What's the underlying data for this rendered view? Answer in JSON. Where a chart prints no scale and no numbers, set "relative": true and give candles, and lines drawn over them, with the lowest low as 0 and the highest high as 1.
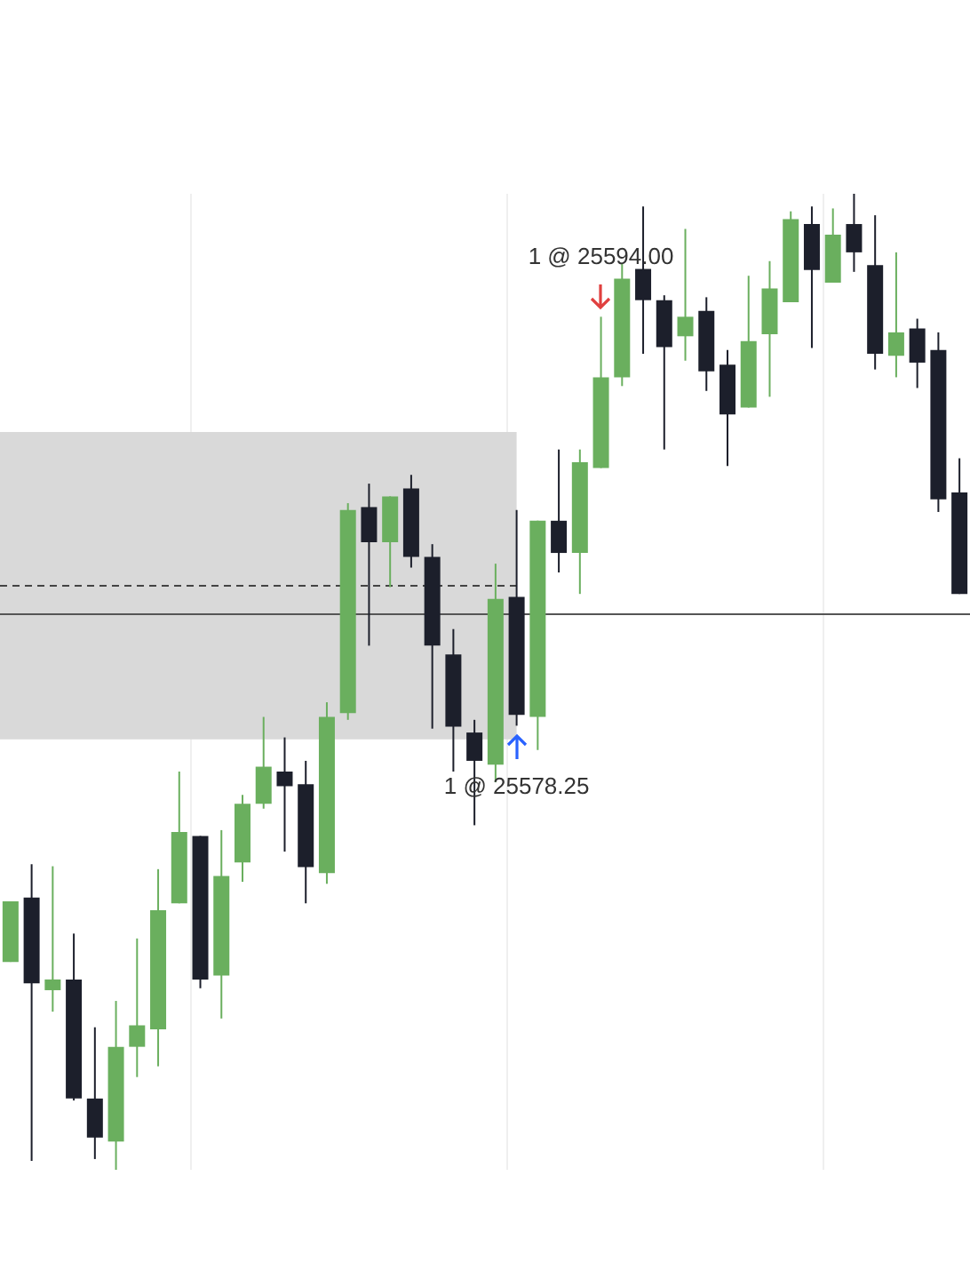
{
  "chart_data": {
    "type": "candlestick",
    "relative": true,
    "categories": [
      null,
      null,
      null,
      null,
      null,
      null,
      null,
      null,
      null,
      null,
      null,
      null,
      null,
      null,
      null,
      null,
      null,
      null,
      null,
      null,
      null,
      null,
      null,
      null,
      null,
      null,
      null,
      null,
      null,
      null,
      null,
      null,
      null,
      null,
      null,
      null,
      null,
      null,
      null,
      null,
      null,
      null,
      null,
      null,
      null,
      null
    ],
    "ohlc": [
      [
        0.213,
        0.275,
        0.213,
        0.275
      ],
      [
        0.279,
        0.313,
        0.009,
        0.191
      ],
      [
        0.184,
        0.311,
        0.162,
        0.195
      ],
      [
        0.195,
        0.242,
        0.071,
        0.073
      ],
      [
        0.073,
        0.146,
        0.011,
        0.033
      ],
      [
        0.029,
        0.173,
        0,
        0.126
      ],
      [
        0.126,
        0.237,
        0.095,
        0.148
      ],
      [
        0.144,
        0.308,
        0.106,
        0.266
      ],
      [
        0.273,
        0.408,
        0.273,
        0.346
      ],
      [
        0.342,
        0.342,
        0.186,
        0.195
      ],
      [
        0.199,
        0.348,
        0.155,
        0.301
      ],
      [
        0.315,
        0.384,
        0.295,
        0.375
      ],
      [
        0.375,
        0.464,
        0.37,
        0.413
      ],
      [
        0.408,
        0.443,
        0.326,
        0.393
      ],
      [
        0.395,
        0.419,
        0.273,
        0.31
      ],
      [
        0.304,
        0.479,
        0.293,
        0.464
      ],
      [
        0.468,
        0.683,
        0.461,
        0.676
      ],
      [
        0.679,
        0.703,
        0.537,
        0.643
      ],
      [
        0.643,
        0.69,
        0.597,
        0.69
      ],
      [
        0.698,
        0.712,
        0.617,
        0.628
      ],
      [
        0.628,
        0.641,
        0.452,
        0.537
      ],
      [
        0.528,
        0.554,
        0.408,
        0.454
      ],
      [
        0.448,
        0.461,
        0.353,
        0.419
      ],
      [
        0.415,
        0.621,
        0.397,
        0.585
      ],
      [
        0.587,
        0.676,
        0.455,
        0.466
      ],
      [
        0.464,
        0.665,
        0.43,
        0.665
      ],
      [
        0.665,
        0.738,
        0.612,
        0.632
      ],
      [
        0.632,
        0.738,
        0.59,
        0.725
      ],
      [
        0.719,
        0.874,
        0.719,
        0.812
      ],
      [
        0.812,
        0.929,
        0.803,
        0.913
      ],
      [
        0.923,
        0.987,
        0.836,
        0.891
      ],
      [
        0.891,
        0.896,
        0.738,
        0.843
      ],
      [
        0.854,
        0.964,
        0.829,
        0.874
      ],
      [
        0.88,
        0.894,
        0.798,
        0.818
      ],
      [
        0.825,
        0.84,
        0.721,
        0.774
      ],
      [
        0.781,
        0.916,
        0.781,
        0.849
      ],
      [
        0.856,
        0.931,
        0.792,
        0.903
      ],
      [
        0.889,
        0.982,
        0.889,
        0.974
      ],
      [
        0.969,
        0.987,
        0.842,
        0.922
      ],
      [
        0.909,
        0.985,
        0.909,
        0.958
      ],
      [
        0.969,
        1,
        0.92,
        0.94
      ],
      [
        0.927,
        0.978,
        0.82,
        0.836
      ],
      [
        0.834,
        0.94,
        0.812,
        0.858
      ],
      [
        0.862,
        0.872,
        0.801,
        0.827
      ],
      [
        0.84,
        0.858,
        0.674,
        0.687
      ],
      [
        0.694,
        0.729,
        0.59,
        0.59
      ]
    ],
    "colors": [
      "#6aaf5e",
      "#1c1f2b",
      "#6aaf5e",
      "#1c1f2b",
      "#1c1f2b",
      "#6aaf5e",
      "#6aaf5e",
      "#6aaf5e",
      "#6aaf5e",
      "#1c1f2b",
      "#6aaf5e",
      "#6aaf5e",
      "#6aaf5e",
      "#1c1f2b",
      "#1c1f2b",
      "#6aaf5e",
      "#6aaf5e",
      "#1c1f2b",
      "#6aaf5e",
      "#1c1f2b",
      "#1c1f2b",
      "#1c1f2b",
      "#1c1f2b",
      "#6aaf5e",
      "#1c1f2b",
      "#6aaf5e",
      "#1c1f2b",
      "#6aaf5e",
      "#6aaf5e",
      "#6aaf5e",
      "#1c1f2b",
      "#1c1f2b",
      "#6aaf5e",
      "#1c1f2b",
      "#1c1f2b",
      "#6aaf5e",
      "#6aaf5e",
      "#6aaf5e",
      "#1c1f2b",
      "#6aaf5e",
      "#1c1f2b",
      "#1c1f2b",
      "#6aaf5e",
      "#1c1f2b",
      "#1c1f2b",
      "#1c1f2b"
    ],
    "bands": [
      {
        "axis": "y",
        "from": 0.441,
        "to": 0.756,
        "color": "#d9d9d9"
      }
    ],
    "ref_lines": [
      {
        "axis": "y",
        "value": 0.566,
        "color": "#555555",
        "line_style": "solid"
      },
      {
        "axis": "y",
        "value": 0.599,
        "color": "#444444",
        "line_style": "dashed"
      }
    ],
    "annotations": [
      "1 @ 25594.00",
      "1 @ 25578.25"
    ],
    "grid": "x"
  }
}
